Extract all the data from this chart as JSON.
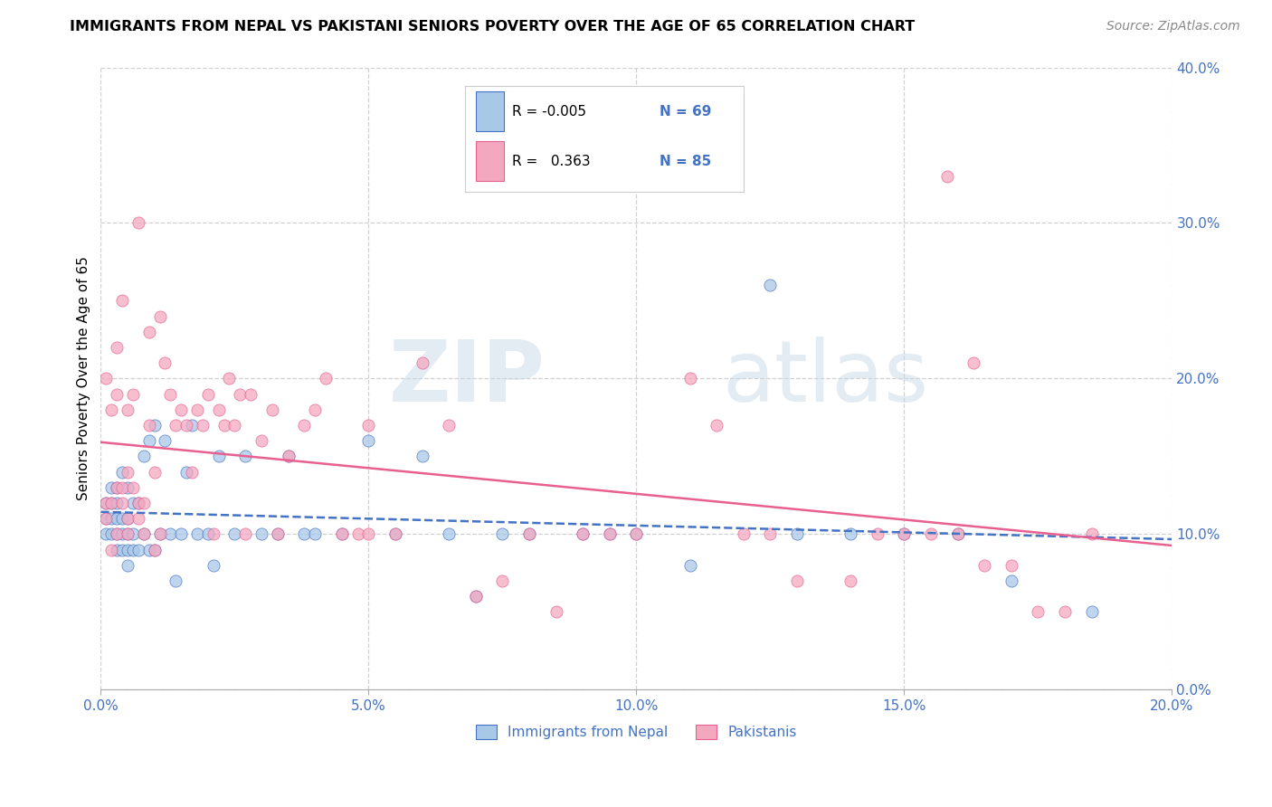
{
  "title": "IMMIGRANTS FROM NEPAL VS PAKISTANI SENIORS POVERTY OVER THE AGE OF 65 CORRELATION CHART",
  "source": "Source: ZipAtlas.com",
  "ylabel": "Seniors Poverty Over the Age of 65",
  "xlim": [
    0.0,
    0.2
  ],
  "ylim": [
    0.0,
    0.4
  ],
  "nepal_R": "-0.005",
  "nepal_N": "69",
  "pakistan_R": "0.363",
  "pakistan_N": "85",
  "color_nepal": "#a8c8e8",
  "color_pakistan": "#f4a8c0",
  "color_nepal_line": "#4472c4",
  "color_pakistan_line": "#e86090",
  "watermark_zip": "ZIP",
  "watermark_atlas": "atlas",
  "background_color": "#ffffff",
  "grid_color": "#d0d0d0",
  "nepal_scatter_x": [
    0.001,
    0.001,
    0.001,
    0.002,
    0.002,
    0.002,
    0.002,
    0.003,
    0.003,
    0.003,
    0.003,
    0.003,
    0.004,
    0.004,
    0.004,
    0.004,
    0.005,
    0.005,
    0.005,
    0.005,
    0.005,
    0.006,
    0.006,
    0.006,
    0.007,
    0.007,
    0.008,
    0.008,
    0.009,
    0.009,
    0.01,
    0.01,
    0.011,
    0.012,
    0.013,
    0.014,
    0.015,
    0.016,
    0.017,
    0.018,
    0.02,
    0.021,
    0.022,
    0.025,
    0.027,
    0.03,
    0.033,
    0.038,
    0.04,
    0.045,
    0.05,
    0.06,
    0.065,
    0.07,
    0.08,
    0.09,
    0.1,
    0.11,
    0.125,
    0.14,
    0.15,
    0.16,
    0.17,
    0.13,
    0.185,
    0.095,
    0.075,
    0.055,
    0.035
  ],
  "nepal_scatter_y": [
    0.12,
    0.1,
    0.11,
    0.1,
    0.11,
    0.12,
    0.13,
    0.09,
    0.1,
    0.11,
    0.12,
    0.13,
    0.09,
    0.1,
    0.11,
    0.14,
    0.08,
    0.09,
    0.1,
    0.11,
    0.13,
    0.09,
    0.1,
    0.12,
    0.09,
    0.12,
    0.1,
    0.15,
    0.09,
    0.16,
    0.09,
    0.17,
    0.1,
    0.16,
    0.1,
    0.07,
    0.1,
    0.14,
    0.17,
    0.1,
    0.1,
    0.08,
    0.15,
    0.1,
    0.15,
    0.1,
    0.1,
    0.1,
    0.1,
    0.1,
    0.16,
    0.15,
    0.1,
    0.06,
    0.1,
    0.1,
    0.1,
    0.08,
    0.26,
    0.1,
    0.1,
    0.1,
    0.07,
    0.1,
    0.05,
    0.1,
    0.1,
    0.1,
    0.15
  ],
  "pakistan_scatter_x": [
    0.001,
    0.001,
    0.001,
    0.002,
    0.002,
    0.002,
    0.003,
    0.003,
    0.003,
    0.003,
    0.004,
    0.004,
    0.004,
    0.005,
    0.005,
    0.005,
    0.005,
    0.006,
    0.006,
    0.007,
    0.007,
    0.007,
    0.008,
    0.008,
    0.009,
    0.009,
    0.01,
    0.01,
    0.011,
    0.011,
    0.012,
    0.013,
    0.014,
    0.015,
    0.016,
    0.017,
    0.018,
    0.019,
    0.02,
    0.021,
    0.022,
    0.023,
    0.024,
    0.025,
    0.026,
    0.027,
    0.028,
    0.03,
    0.032,
    0.033,
    0.035,
    0.038,
    0.04,
    0.042,
    0.045,
    0.05,
    0.055,
    0.06,
    0.065,
    0.075,
    0.08,
    0.09,
    0.1,
    0.11,
    0.12,
    0.13,
    0.14,
    0.15,
    0.155,
    0.158,
    0.16,
    0.165,
    0.17,
    0.175,
    0.18,
    0.185,
    0.048,
    0.07,
    0.085,
    0.095,
    0.115,
    0.125,
    0.145,
    0.163,
    0.05
  ],
  "pakistan_scatter_y": [
    0.11,
    0.12,
    0.2,
    0.12,
    0.18,
    0.09,
    0.1,
    0.19,
    0.22,
    0.13,
    0.12,
    0.25,
    0.13,
    0.11,
    0.14,
    0.18,
    0.1,
    0.13,
    0.19,
    0.11,
    0.12,
    0.3,
    0.1,
    0.12,
    0.17,
    0.23,
    0.14,
    0.09,
    0.24,
    0.1,
    0.21,
    0.19,
    0.17,
    0.18,
    0.17,
    0.14,
    0.18,
    0.17,
    0.19,
    0.1,
    0.18,
    0.17,
    0.2,
    0.17,
    0.19,
    0.1,
    0.19,
    0.16,
    0.18,
    0.1,
    0.15,
    0.17,
    0.18,
    0.2,
    0.1,
    0.17,
    0.1,
    0.21,
    0.17,
    0.07,
    0.1,
    0.1,
    0.1,
    0.2,
    0.1,
    0.07,
    0.07,
    0.1,
    0.1,
    0.33,
    0.1,
    0.08,
    0.08,
    0.05,
    0.05,
    0.1,
    0.1,
    0.06,
    0.05,
    0.1,
    0.17,
    0.1,
    0.1,
    0.21,
    0.1
  ]
}
